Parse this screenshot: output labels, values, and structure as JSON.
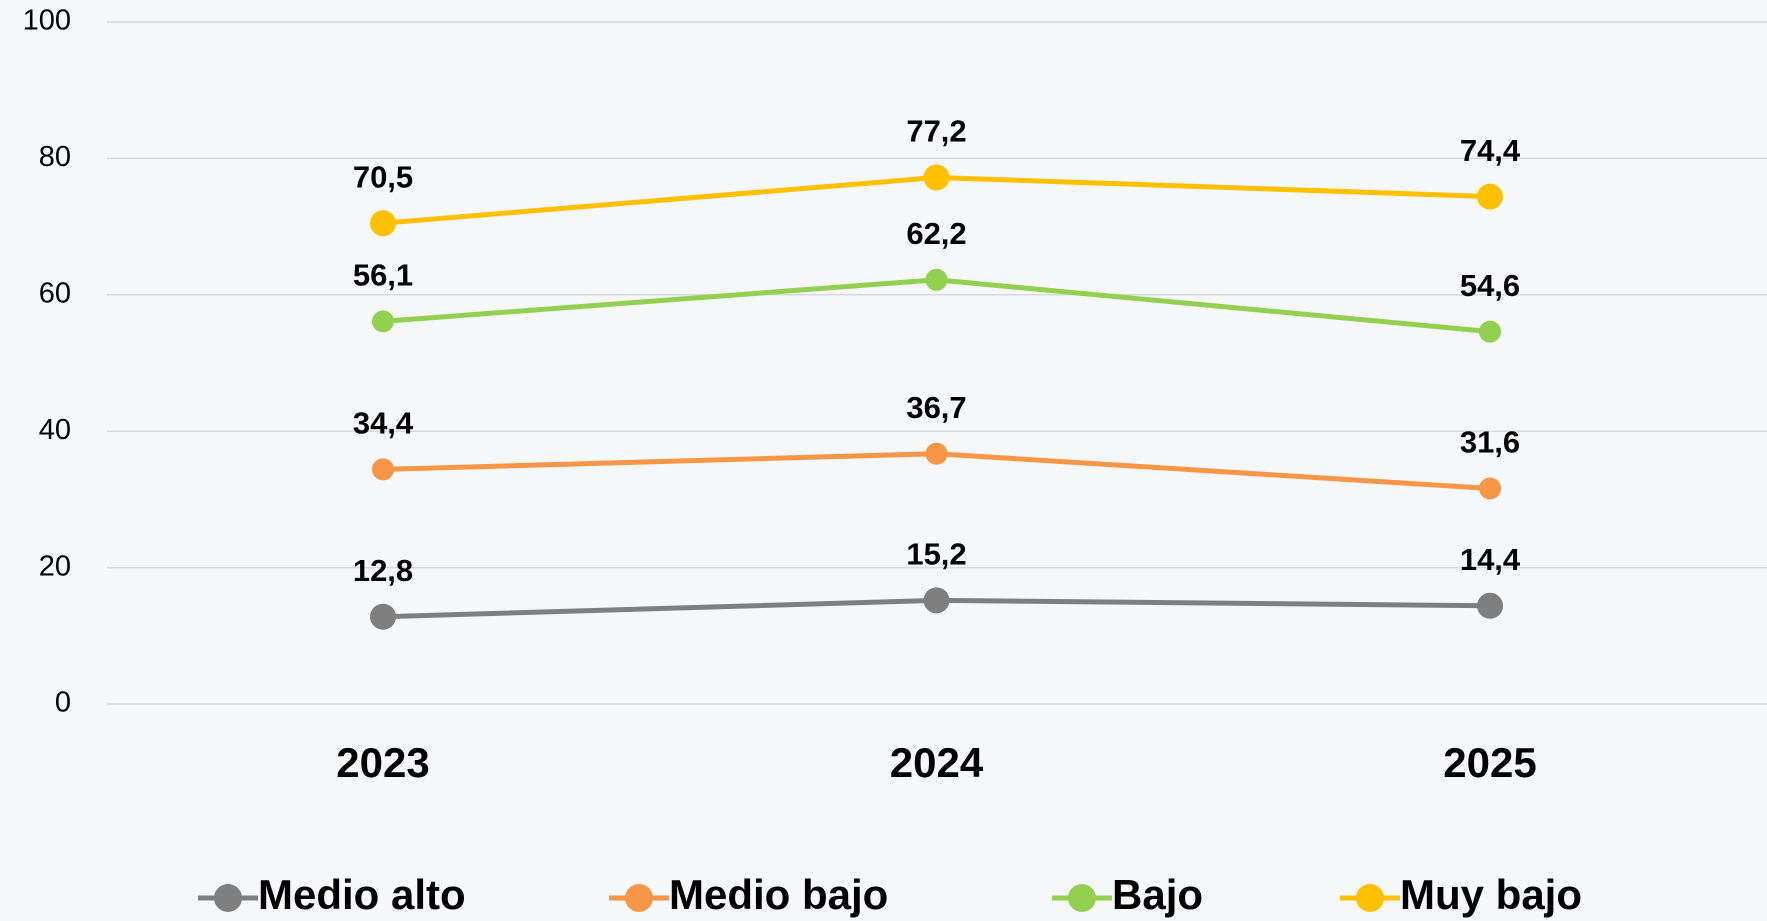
{
  "chart_data": {
    "type": "line",
    "categories": [
      "2023",
      "2024",
      "2025"
    ],
    "series": [
      {
        "name": "Medio alto",
        "color": "#7f7f7f",
        "values": [
          12.8,
          15.2,
          14.4
        ],
        "value_labels": [
          "12,8",
          "15,2",
          "14,4"
        ]
      },
      {
        "name": "Medio bajo",
        "color": "#f79646",
        "values": [
          34.4,
          36.7,
          31.6
        ],
        "value_labels": [
          "34,4",
          "36,7",
          "31,6"
        ]
      },
      {
        "name": "Bajo",
        "color": "#92d050",
        "values": [
          56.1,
          62.2,
          54.6
        ],
        "value_labels": [
          "56,1",
          "62,2",
          "54,6"
        ]
      },
      {
        "name": "Muy bajo",
        "color": "#ffc000",
        "values": [
          70.5,
          77.2,
          74.4
        ],
        "value_labels": [
          "70,5",
          "77,2",
          "74,4"
        ]
      }
    ],
    "ylim": [
      0,
      100
    ],
    "yticks": [
      0,
      20,
      40,
      60,
      80,
      100
    ],
    "grid": true,
    "legend": "bottom"
  }
}
